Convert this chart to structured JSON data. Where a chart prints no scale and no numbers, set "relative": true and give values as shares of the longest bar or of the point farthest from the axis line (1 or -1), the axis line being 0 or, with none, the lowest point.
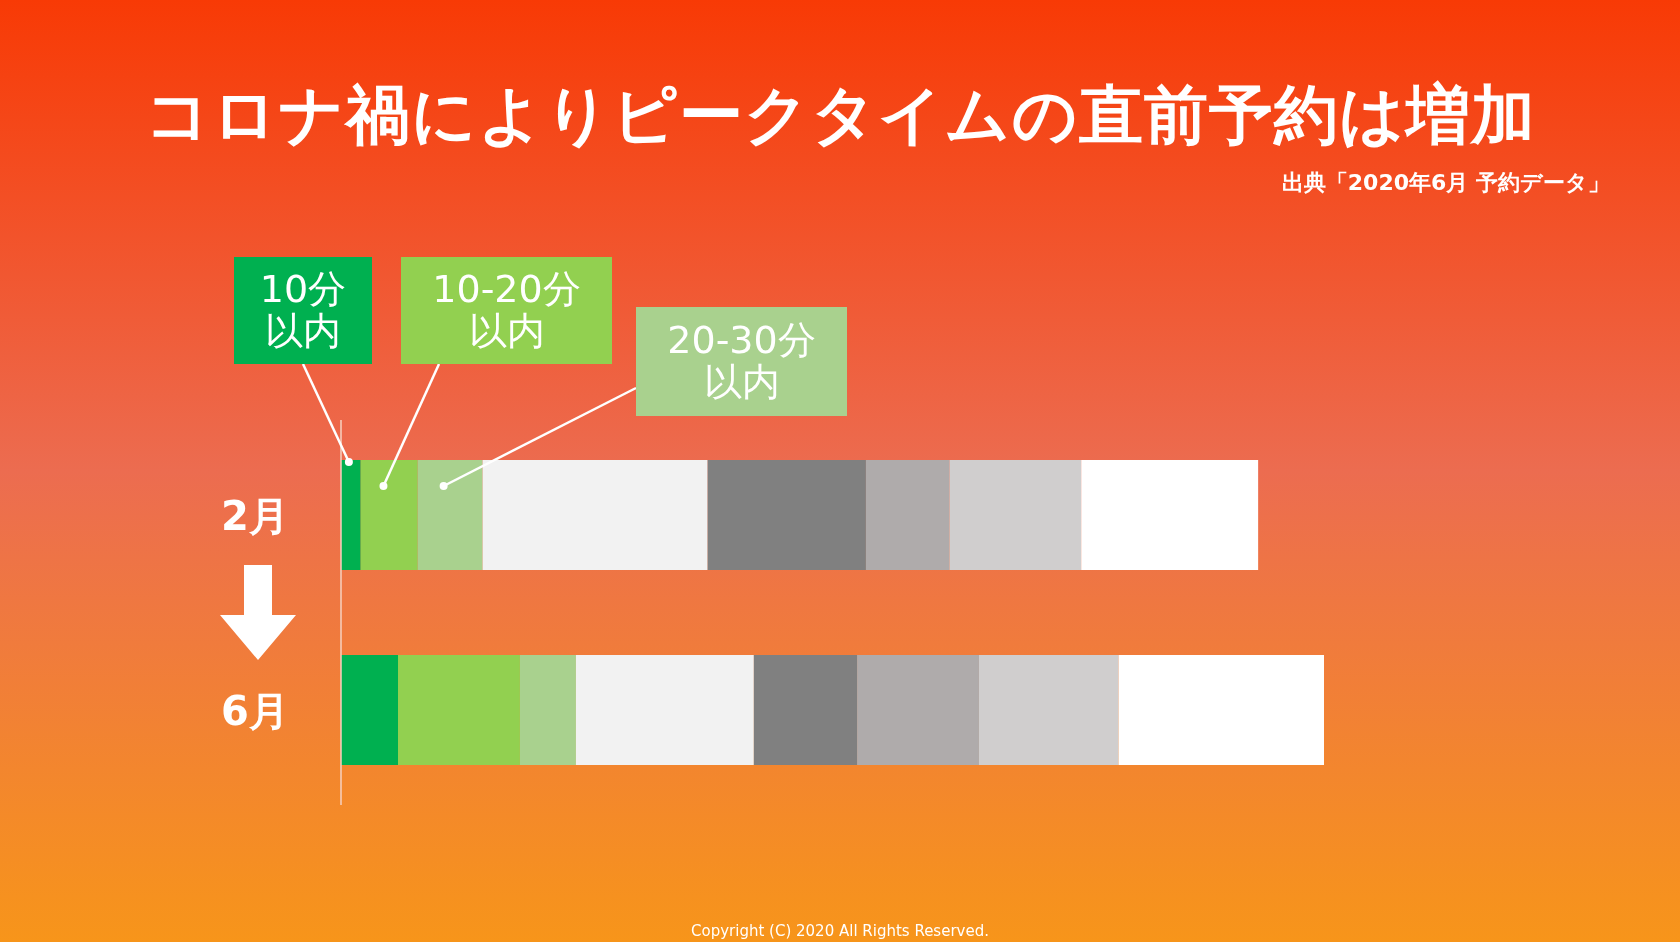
{
  "chart_data": {
    "type": "bar",
    "orientation": "horizontal",
    "stacked": true,
    "relative": true,
    "title": "コロナ禍によりピークタイムの直前予約は増加",
    "categories": [
      "2月",
      "6月"
    ],
    "series": [
      {
        "name": "10分以内",
        "color": "#00b050",
        "values": [
          0.02,
          0.058
        ]
      },
      {
        "name": "10-20分以内",
        "color": "#92d050",
        "values": [
          0.058,
          0.124
        ]
      },
      {
        "name": "20-30分以内",
        "color": "#a9d18e",
        "values": [
          0.066,
          0.057
        ]
      },
      {
        "color": "#f2f2f2",
        "values": [
          0.229,
          0.181
        ]
      },
      {
        "color": "#808080",
        "values": [
          0.161,
          0.105
        ]
      },
      {
        "color": "#afabab",
        "values": [
          0.085,
          0.124
        ]
      },
      {
        "color": "#d0cece",
        "values": [
          0.134,
          0.142
        ]
      },
      {
        "color": "#ffffff",
        "values": [
          0.18,
          0.209
        ]
      }
    ],
    "annotations": [
      "出典「2020年6月 予約データ」",
      "Copyright (C) 2020 All Rights Reserved."
    ]
  }
}
